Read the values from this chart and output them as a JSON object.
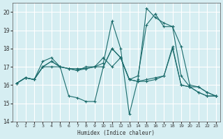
{
  "xlabel": "Humidex (Indice chaleur)",
  "ylabel": "",
  "bg_color": "#d6eef2",
  "grid_color": "#ffffff",
  "line_color": "#1a6b6b",
  "xlim": [
    -0.5,
    23.5
  ],
  "ylim": [
    14,
    20.5
  ],
  "yticks": [
    14,
    15,
    16,
    17,
    18,
    19,
    20
  ],
  "xticks": [
    0,
    1,
    2,
    3,
    4,
    5,
    6,
    7,
    8,
    9,
    10,
    11,
    12,
    13,
    14,
    15,
    16,
    17,
    18,
    19,
    20,
    21,
    22,
    23
  ],
  "lines": [
    {
      "x": [
        0,
        1,
        2,
        3,
        4,
        5,
        6,
        7,
        8,
        9,
        10,
        11,
        12,
        13,
        14,
        15,
        16,
        17,
        18,
        19,
        20,
        21,
        22,
        23
      ],
      "y": [
        16.1,
        16.4,
        16.3,
        17.3,
        17.5,
        17.0,
        15.4,
        15.3,
        15.1,
        15.1,
        17.0,
        18.0,
        17.5,
        16.3,
        16.2,
        16.3,
        16.4,
        16.5,
        18.1,
        16.0,
        15.9,
        15.6,
        15.4,
        15.4
      ]
    },
    {
      "x": [
        0,
        1,
        2,
        3,
        4,
        5,
        6,
        7,
        8,
        9,
        10,
        11,
        12,
        13,
        14,
        15,
        16,
        17,
        18,
        19,
        20,
        21,
        22,
        23
      ],
      "y": [
        16.1,
        16.4,
        16.3,
        17.0,
        17.3,
        17.0,
        16.9,
        16.9,
        16.9,
        17.0,
        17.2,
        19.5,
        18.0,
        14.4,
        16.3,
        20.2,
        19.7,
        19.4,
        19.2,
        18.1,
        16.0,
        15.9,
        15.6,
        15.4
      ]
    },
    {
      "x": [
        0,
        1,
        2,
        3,
        4,
        5,
        6,
        7,
        8,
        9,
        10,
        11,
        12,
        13,
        14,
        15,
        16,
        17,
        18,
        19,
        20,
        21,
        22,
        23
      ],
      "y": [
        16.1,
        16.4,
        16.3,
        17.0,
        17.3,
        17.0,
        16.9,
        16.8,
        17.0,
        17.0,
        17.5,
        17.0,
        17.5,
        16.3,
        16.5,
        19.3,
        19.9,
        19.2,
        19.2,
        16.5,
        15.9,
        15.9,
        15.6,
        15.4
      ]
    },
    {
      "x": [
        0,
        1,
        2,
        3,
        4,
        5,
        6,
        7,
        8,
        9,
        10,
        11,
        12,
        13,
        14,
        15,
        16,
        17,
        18,
        19,
        20,
        21,
        22,
        23
      ],
      "y": [
        16.1,
        16.4,
        16.3,
        17.0,
        17.0,
        17.0,
        16.9,
        16.8,
        16.9,
        17.0,
        17.0,
        18.0,
        17.5,
        16.3,
        16.2,
        16.2,
        16.3,
        16.5,
        18.0,
        16.0,
        15.9,
        15.6,
        15.4,
        15.4
      ]
    }
  ]
}
